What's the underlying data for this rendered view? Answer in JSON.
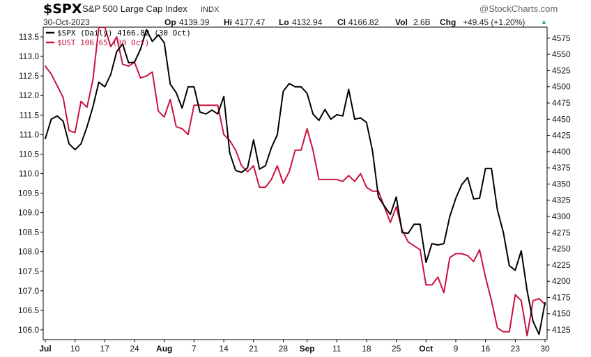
{
  "header": {
    "symbol": "$SPX",
    "name": "S&P 500 Large Cap Index",
    "exchange": "INDX",
    "date": "30-Oct-2023",
    "stats": [
      {
        "label": "Op",
        "value": "4139.39"
      },
      {
        "label": "Hi",
        "value": "4177.47"
      },
      {
        "label": "Lo",
        "value": "4132.94"
      },
      {
        "label": "Cl",
        "value": "4166.82"
      },
      {
        "label": "Vol",
        "value": "2.6B"
      },
      {
        "label": "Chg",
        "value": "+49.45 (+1.20%)"
      }
    ],
    "brand": "@StockCharts.com"
  },
  "chart_data": {
    "type": "line",
    "grid": false,
    "legend_position": "top-left",
    "x_ticks": [
      {
        "label": "Jul",
        "index": 0,
        "bold": true
      },
      {
        "label": "10",
        "index": 5,
        "bold": false
      },
      {
        "label": "17",
        "index": 10,
        "bold": false
      },
      {
        "label": "24",
        "index": 15,
        "bold": false
      },
      {
        "label": "Aug",
        "index": 20,
        "bold": true
      },
      {
        "label": "7",
        "index": 25,
        "bold": false
      },
      {
        "label": "14",
        "index": 30,
        "bold": false
      },
      {
        "label": "21",
        "index": 35,
        "bold": false
      },
      {
        "label": "28",
        "index": 40,
        "bold": false
      },
      {
        "label": "Sep",
        "index": 44,
        "bold": true
      },
      {
        "label": "11",
        "index": 49,
        "bold": false
      },
      {
        "label": "18",
        "index": 54,
        "bold": false
      },
      {
        "label": "25",
        "index": 59,
        "bold": false
      },
      {
        "label": "Oct",
        "index": 64,
        "bold": true
      },
      {
        "label": "9",
        "index": 69,
        "bold": false
      },
      {
        "label": "16",
        "index": 74,
        "bold": false
      },
      {
        "label": "23",
        "index": 79,
        "bold": false
      },
      {
        "label": "30",
        "index": 84,
        "bold": false
      }
    ],
    "y_left": {
      "ylim": [
        105.75,
        113.75
      ],
      "ticks": [
        "106.0",
        "106.5",
        "107.0",
        "107.5",
        "108.0",
        "108.5",
        "109.0",
        "109.5",
        "110.0",
        "110.5",
        "111.0",
        "111.5",
        "112.0",
        "112.5",
        "113.0",
        "113.5"
      ]
    },
    "y_right": {
      "ylim": [
        4110,
        4592
      ],
      "ticks": [
        "4125",
        "4150",
        "4175",
        "4200",
        "4225",
        "4250",
        "4275",
        "4300",
        "4325",
        "4350",
        "4375",
        "4400",
        "4425",
        "4450",
        "4475",
        "4500",
        "4525",
        "4550",
        "4575"
      ]
    },
    "series": [
      {
        "name": "$SPX (Daily) 4166.82 (30 Oct)",
        "axis": "right",
        "color": "#000000",
        "values": [
          4420,
          4450,
          4455,
          4447,
          4412,
          4403,
          4412,
          4438,
          4469,
          4507,
          4500,
          4519,
          4554,
          4566,
          4537,
          4538,
          4558,
          4588,
          4570,
          4580,
          4568,
          4504,
          4491,
          4467,
          4500,
          4500,
          4461,
          4458,
          4464,
          4458,
          4485,
          4398,
          4371,
          4368,
          4375,
          4418,
          4373,
          4378,
          4406,
          4426,
          4493,
          4505,
          4500,
          4500,
          4490,
          4458,
          4448,
          4465,
          4450,
          4457,
          4455,
          4496,
          4450,
          4452,
          4445,
          4401,
          4330,
          4316,
          4303,
          4330,
          4275,
          4274,
          4288,
          4288,
          4229,
          4258,
          4256,
          4258,
          4300,
          4328,
          4349,
          4360,
          4327,
          4328,
          4374,
          4374,
          4310,
          4275,
          4224,
          4217,
          4247,
          4185,
          4138,
          4118,
          4167
        ]
      },
      {
        "name": "$UST 106.65 (30 Oct)",
        "axis": "left",
        "color": "#c8133f",
        "values": [
          112.75,
          112.55,
          112.25,
          111.95,
          111.1,
          111.05,
          111.85,
          111.7,
          112.4,
          113.75,
          113.75,
          113.25,
          113.5,
          112.8,
          112.75,
          112.85,
          112.45,
          112.5,
          112.6,
          111.6,
          111.45,
          111.9,
          111.2,
          111.15,
          111.0,
          111.75,
          111.75,
          111.75,
          111.75,
          111.75,
          111.0,
          110.85,
          110.6,
          110.2,
          110.05,
          110.2,
          109.65,
          109.65,
          109.85,
          110.2,
          109.75,
          110.05,
          110.6,
          110.6,
          111.15,
          110.6,
          109.85,
          109.85,
          109.85,
          109.85,
          109.8,
          109.95,
          109.8,
          110.0,
          109.65,
          109.55,
          109.55,
          109.15,
          108.75,
          109.15,
          108.55,
          108.25,
          108.15,
          108.05,
          107.15,
          107.15,
          107.35,
          106.95,
          107.85,
          107.95,
          107.95,
          107.9,
          107.75,
          108.05,
          107.35,
          106.75,
          106.05,
          105.95,
          105.95,
          106.9,
          106.75,
          105.85,
          106.75,
          106.8,
          106.65
        ]
      }
    ]
  }
}
